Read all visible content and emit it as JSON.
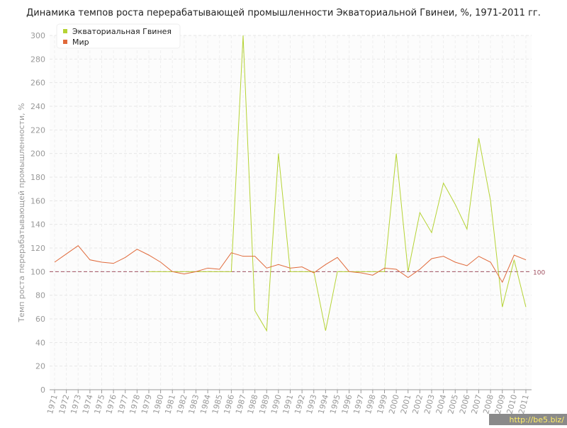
{
  "chart_data": {
    "type": "line",
    "title": "Динамика темпов роста перерабатывающей промышленности Экваториальной Гвинеи, %, 1971-2011 гг.",
    "y_label": "Темп роста перерабатывающей промышленности, %",
    "categories": [
      "1971",
      "1972",
      "1973",
      "1974",
      "1975",
      "1976",
      "1977",
      "1978",
      "1979",
      "1980",
      "1981",
      "1982",
      "1983",
      "1984",
      "1985",
      "1986",
      "1987",
      "1988",
      "1989",
      "1990",
      "1991",
      "1992",
      "1993",
      "1994",
      "1995",
      "1996",
      "1997",
      "1998",
      "1999",
      "2000",
      "2001",
      "2002",
      "2003",
      "2004",
      "2005",
      "2006",
      "2007",
      "2008",
      "2009",
      "2010",
      "2011"
    ],
    "series": [
      {
        "name": "Экваториальная Гвинея",
        "color": "#b5d334",
        "values": [
          null,
          null,
          null,
          null,
          null,
          null,
          null,
          null,
          100,
          100,
          100,
          100,
          100,
          100,
          100,
          100,
          300,
          67,
          50,
          200,
          100,
          100,
          100,
          50,
          100,
          100,
          100,
          100,
          100,
          200,
          100,
          150,
          133,
          175,
          157,
          136,
          213,
          160,
          70,
          110,
          70
        ]
      },
      {
        "name": "Мир",
        "color": "#e0693a",
        "values": [
          108,
          115,
          122,
          110,
          108,
          107,
          112,
          119,
          114,
          108,
          100,
          98,
          100,
          103,
          102,
          116,
          113,
          113,
          103,
          106,
          103,
          104,
          99,
          106,
          112,
          100,
          99,
          97,
          103,
          102,
          95,
          102,
          111,
          113,
          108,
          105,
          113,
          108,
          91,
          114,
          110
        ]
      }
    ],
    "reference_line": 100,
    "ylim": [
      0,
      300
    ],
    "yticks": [
      0,
      20,
      40,
      60,
      80,
      100,
      120,
      140,
      160,
      180,
      200,
      220,
      240,
      260,
      280,
      300
    ],
    "grid": true,
    "legend": "top-left",
    "watermark": "http://be5.biz/"
  }
}
